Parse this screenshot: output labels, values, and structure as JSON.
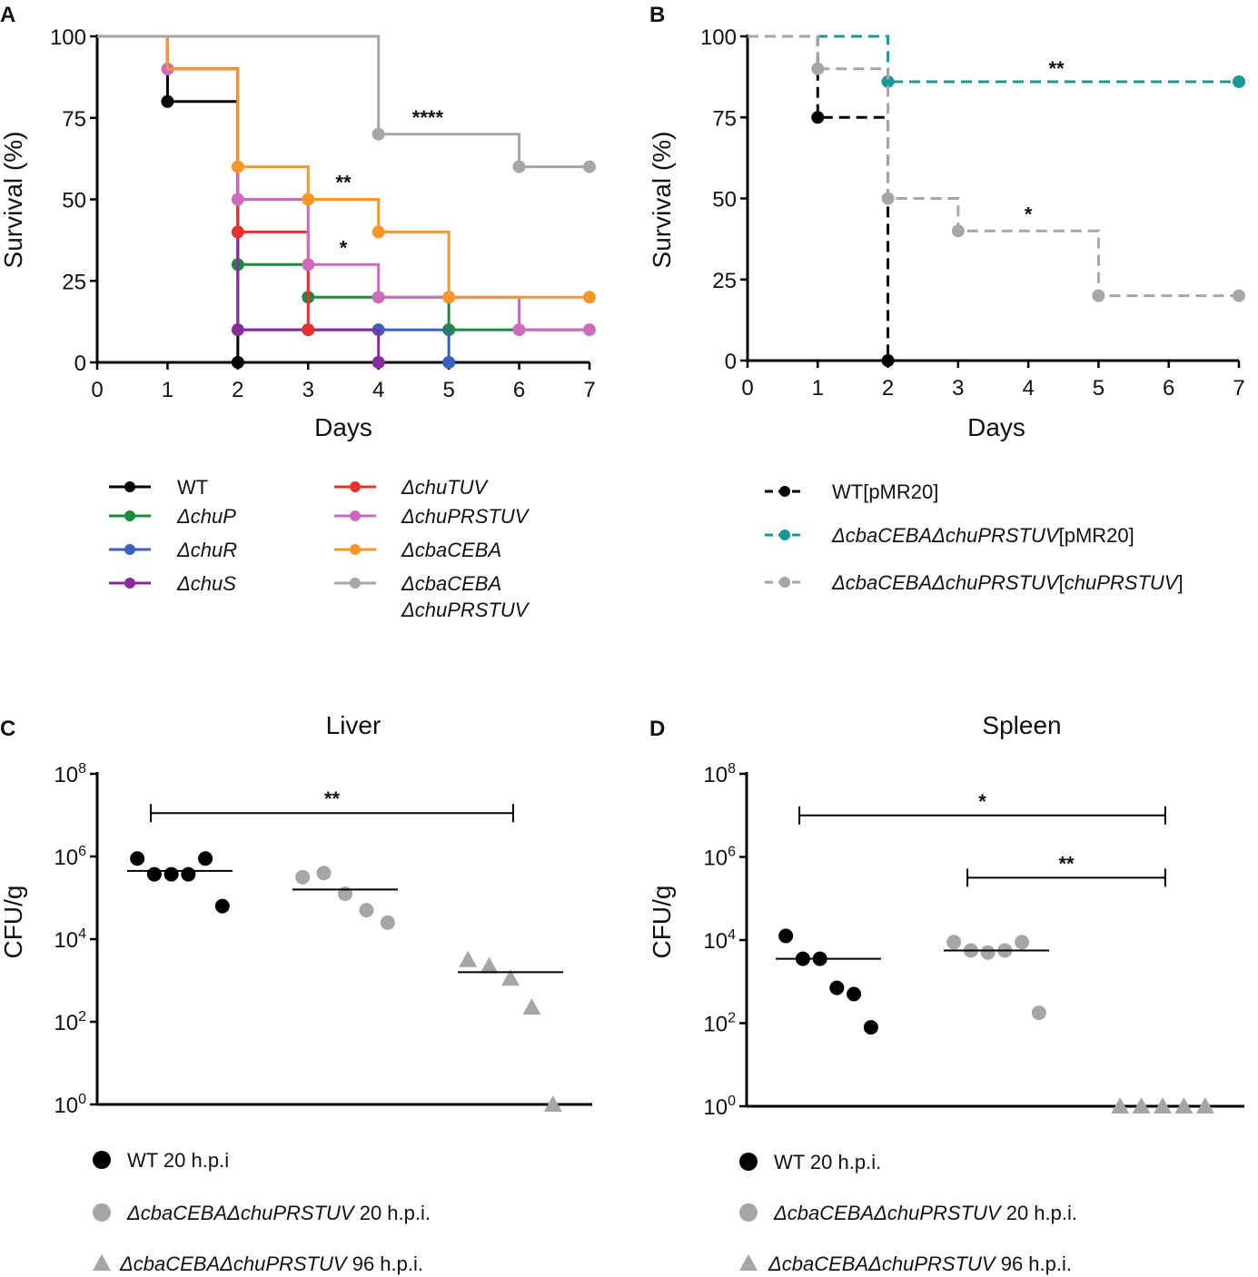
{
  "chart_data": [
    {
      "panel": "A",
      "type": "line",
      "step": true,
      "xlabel": "Days",
      "ylabel": "Survival (%)",
      "xlim": [
        0,
        7
      ],
      "ylim": [
        0,
        100
      ],
      "xticks": [
        "0",
        "1",
        "2",
        "3",
        "4",
        "5",
        "6",
        "7"
      ],
      "yticks": [
        "0",
        "25",
        "50",
        "75",
        "100"
      ],
      "series": [
        {
          "name": "WT",
          "italic": false,
          "color": "#000000",
          "steps": [
            [
              0,
              100
            ],
            [
              1,
              80
            ],
            [
              2,
              0
            ]
          ],
          "end": 2,
          "markers": [
            [
              1,
              80
            ],
            [
              2,
              0
            ]
          ]
        },
        {
          "name": "ΔchuP",
          "italic": true,
          "color": "#1a8c3c",
          "steps": [
            [
              0,
              100
            ],
            [
              1,
              90
            ],
            [
              2,
              30
            ],
            [
              3,
              20
            ],
            [
              5,
              10
            ]
          ],
          "end": 7,
          "markers": [
            [
              2,
              30
            ],
            [
              3,
              20
            ],
            [
              5,
              10
            ]
          ]
        },
        {
          "name": "ΔchuR",
          "italic": true,
          "color": "#3a5fbf",
          "steps": [
            [
              0,
              100
            ],
            [
              1,
              90
            ],
            [
              2,
              10
            ],
            [
              5,
              0
            ]
          ],
          "end": 5,
          "markers": [
            [
              4,
              10
            ],
            [
              5,
              0
            ]
          ]
        },
        {
          "name": "ΔchuS",
          "italic": true,
          "color": "#8b2a9c",
          "steps": [
            [
              0,
              100
            ],
            [
              1,
              90
            ],
            [
              2,
              10
            ],
            [
              4,
              0
            ]
          ],
          "end": 4,
          "markers": [
            [
              2,
              10
            ],
            [
              3,
              10
            ],
            [
              4,
              0
            ]
          ]
        },
        {
          "name": "ΔchuTUV",
          "italic": true,
          "color": "#e8312e",
          "steps": [
            [
              0,
              100
            ],
            [
              1,
              90
            ],
            [
              2,
              40
            ],
            [
              3,
              10
            ]
          ],
          "end": 3,
          "markers": [
            [
              2,
              40
            ],
            [
              3,
              10
            ]
          ]
        },
        {
          "name": "ΔchuPRSTUV",
          "italic": true,
          "color": "#cc6bbd",
          "steps": [
            [
              0,
              100
            ],
            [
              1,
              90
            ],
            [
              2,
              50
            ],
            [
              3,
              30
            ],
            [
              4,
              20
            ],
            [
              6,
              10
            ]
          ],
          "end": 7,
          "markers": [
            [
              1,
              90
            ],
            [
              2,
              50
            ],
            [
              3,
              30
            ],
            [
              4,
              20
            ],
            [
              5,
              20
            ],
            [
              6,
              10
            ],
            [
              7,
              10
            ]
          ]
        },
        {
          "name": "ΔcbaCEBA",
          "italic": true,
          "color": "#f7962b",
          "steps": [
            [
              0,
              100
            ],
            [
              1,
              90
            ],
            [
              2,
              60
            ],
            [
              3,
              50
            ],
            [
              4,
              40
            ],
            [
              5,
              20
            ]
          ],
          "end": 7,
          "markers": [
            [
              2,
              60
            ],
            [
              3,
              50
            ],
            [
              4,
              40
            ],
            [
              5,
              20
            ],
            [
              7,
              20
            ]
          ]
        },
        {
          "name": "ΔcbaCEBA ΔchuPRSTUV",
          "italic": true,
          "color": "#a6a6a6",
          "steps": [
            [
              0,
              100
            ],
            [
              4,
              70
            ],
            [
              6,
              60
            ]
          ],
          "end": 7,
          "markers": [
            [
              4,
              70
            ],
            [
              6,
              60
            ],
            [
              7,
              60
            ]
          ]
        }
      ],
      "annotations": [
        {
          "text": "****",
          "x": 4.7,
          "y": 73
        },
        {
          "text": "**",
          "x": 3.5,
          "y": 53
        },
        {
          "text": "*",
          "x": 3.5,
          "y": 33
        }
      ],
      "legend_rows": [
        {
          "col": 0,
          "label": "WT",
          "series": 0
        },
        {
          "col": 0,
          "label": "ΔchuP",
          "series": 1
        },
        {
          "col": 0,
          "label": "ΔchuR",
          "series": 2
        },
        {
          "col": 0,
          "label": "ΔchuS",
          "series": 3
        },
        {
          "col": 1,
          "label": "ΔchuTUV",
          "series": 4
        },
        {
          "col": 1,
          "label": "ΔchuPRSTUV",
          "series": 5
        },
        {
          "col": 1,
          "label": "ΔcbaCEBA",
          "series": 6
        },
        {
          "col": 1,
          "label": "ΔcbaCEBA",
          "label2": "ΔchuPRSTUV",
          "series": 7
        }
      ]
    },
    {
      "panel": "B",
      "type": "line",
      "step": true,
      "dashed": true,
      "xlabel": "Days",
      "ylabel": "Survival (%)",
      "xlim": [
        0,
        7
      ],
      "ylim": [
        0,
        100
      ],
      "xticks": [
        "0",
        "1",
        "2",
        "3",
        "4",
        "5",
        "6",
        "7"
      ],
      "yticks": [
        "0",
        "25",
        "50",
        "75",
        "100"
      ],
      "series": [
        {
          "name": "WT[pMR20]",
          "color": "#000000",
          "steps": [
            [
              0,
              100
            ],
            [
              1,
              75
            ],
            [
              2,
              0
            ]
          ],
          "end": 7,
          "markers": [
            [
              1,
              75
            ],
            [
              2,
              0
            ]
          ]
        },
        {
          "name": "ΔcbaCEBAΔchuPRSTUV[pMR20]",
          "color": "#1a9a96",
          "steps": [
            [
              0,
              100
            ],
            [
              2,
              86
            ]
          ],
          "end": 7,
          "markers": [
            [
              2,
              86
            ],
            [
              7,
              86
            ]
          ]
        },
        {
          "name": "ΔcbaCEBAΔchuPRSTUV[chuPRSTUV]",
          "color": "#a6a6a6",
          "steps": [
            [
              0,
              100
            ],
            [
              1,
              90
            ],
            [
              2,
              50
            ],
            [
              3,
              40
            ],
            [
              5,
              20
            ]
          ],
          "end": 7,
          "markers": [
            [
              1,
              90
            ],
            [
              2,
              50
            ],
            [
              3,
              40
            ],
            [
              5,
              20
            ],
            [
              7,
              20
            ]
          ]
        }
      ],
      "annotations": [
        {
          "text": "**",
          "x": 4.4,
          "y": 88
        },
        {
          "text": "*",
          "x": 4.0,
          "y": 43
        }
      ],
      "legend_rows": [
        {
          "parts": [
            {
              "t": "WT[pMR20]",
              "i": false
            }
          ],
          "series": 0
        },
        {
          "parts": [
            {
              "t": "ΔcbaCEBAΔchuPRSTUV",
              "i": true
            },
            {
              "t": "[pMR20]",
              "i": false
            }
          ],
          "series": 1
        },
        {
          "parts": [
            {
              "t": "ΔcbaCEBAΔchuPRSTUV",
              "i": true
            },
            {
              "t": "[",
              "i": false
            },
            {
              "t": "chuPRSTUV",
              "i": true
            },
            {
              "t": "]",
              "i": false
            }
          ],
          "series": 2
        }
      ]
    },
    {
      "panel": "C",
      "type": "scatter",
      "title": "Liver",
      "ylabel": "CFU/g",
      "yscale": "log10",
      "ylim_exp": [
        0,
        8
      ],
      "ytick_exps": [
        "0",
        "2",
        "4",
        "6",
        "8"
      ],
      "groups": [
        {
          "name": "WT 20 h.p.i",
          "color": "#000000",
          "marker": "circle",
          "log_values": [
            5.95,
            5.57,
            5.57,
            5.57,
            5.95,
            4.8
          ],
          "median_log": 5.65
        },
        {
          "name": "ΔcbaCEBAΔchuPRSTUV 20 h.p.i.",
          "color": "#a6a6a6",
          "marker": "circle",
          "log_values": [
            5.5,
            5.6,
            5.1,
            4.7,
            4.4
          ],
          "median_log": 5.2
        },
        {
          "name": "ΔcbaCEBAΔchuPRSTUV 96 h.p.i.",
          "color": "#a6a6a6",
          "marker": "triangle",
          "log_values": [
            3.5,
            3.35,
            3.05,
            2.35,
            0
          ],
          "median_log": 3.2
        }
      ],
      "comparisons": [
        {
          "from": 0,
          "to": 2,
          "text": "**",
          "level_log": 7.05
        }
      ],
      "legend_rows": [
        {
          "parts": [
            {
              "t": "WT 20 h.p.i",
              "i": false
            }
          ],
          "group": 0
        },
        {
          "parts": [
            {
              "t": "ΔcbaCEBAΔchuPRSTUV",
              "i": true
            },
            {
              "t": " 20 h.p.i.",
              "i": false
            }
          ],
          "group": 1
        },
        {
          "parts": [
            {
              "t": "ΔcbaCEBAΔchuPRSTUV",
              "i": true
            },
            {
              "t": " 96 h.p.i.",
              "i": false
            }
          ],
          "group": 2
        }
      ]
    },
    {
      "panel": "D",
      "type": "scatter",
      "title": "Spleen",
      "ylabel": "CFU/g",
      "yscale": "log10",
      "ylim_exp": [
        0,
        8
      ],
      "ytick_exps": [
        "0",
        "2",
        "4",
        "6",
        "8"
      ],
      "groups": [
        {
          "name": "WT 20 h.p.i.",
          "color": "#000000",
          "marker": "circle",
          "log_values": [
            4.1,
            3.55,
            3.55,
            2.85,
            2.7,
            1.9
          ],
          "median_log": 3.55
        },
        {
          "name": "ΔcbaCEBAΔchuPRSTUV 20 h.p.i.",
          "color": "#a6a6a6",
          "marker": "circle",
          "log_values": [
            3.95,
            3.75,
            3.7,
            3.75,
            3.95,
            2.25
          ],
          "median_log": 3.75
        },
        {
          "name": "ΔcbaCEBAΔchuPRSTUV 96 h.p.i.",
          "color": "#a6a6a6",
          "marker": "triangle",
          "log_values": [
            0,
            0,
            0,
            0,
            0
          ],
          "median_log": null
        }
      ],
      "comparisons": [
        {
          "from": 0,
          "to": 2,
          "text": "*",
          "level_log": 7.0
        },
        {
          "from": 1,
          "to": 2,
          "text": "**",
          "level_log": 5.5
        }
      ],
      "legend_rows": [
        {
          "parts": [
            {
              "t": "WT 20 h.p.i.",
              "i": false
            }
          ],
          "group": 0
        },
        {
          "parts": [
            {
              "t": "ΔcbaCEBAΔchuPRSTUV",
              "i": true
            },
            {
              "t": " 20 h.p.i.",
              "i": false
            }
          ],
          "group": 1
        },
        {
          "parts": [
            {
              "t": "ΔcbaCEBAΔchuPRSTUV",
              "i": true
            },
            {
              "t": " 96 h.p.i.",
              "i": false
            }
          ],
          "group": 2
        }
      ]
    }
  ]
}
